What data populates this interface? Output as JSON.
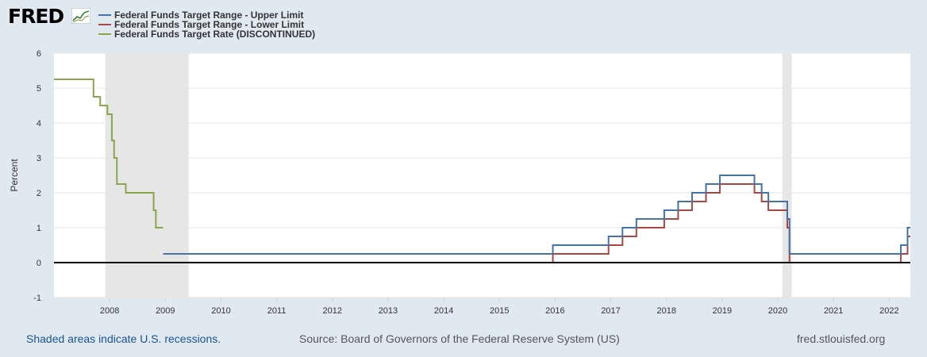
{
  "header": {
    "logo_text": "FRED",
    "logo_icon": "chart-line-icon"
  },
  "chart_data": {
    "type": "line",
    "title": "",
    "xlabel": "",
    "ylabel": "Percent",
    "ylim": [
      -1,
      6
    ],
    "xlim": [
      2007.0,
      2022.38
    ],
    "yticks": [
      "-1",
      "0",
      "1",
      "2",
      "3",
      "4",
      "5",
      "6"
    ],
    "xticks": [
      "2008",
      "2009",
      "2010",
      "2011",
      "2012",
      "2013",
      "2014",
      "2015",
      "2016",
      "2017",
      "2018",
      "2019",
      "2020",
      "2021",
      "2022"
    ],
    "grid": true,
    "legend_position": "top-left",
    "recessions": [
      [
        2007.92,
        2009.42
      ],
      [
        2020.08,
        2020.25
      ]
    ],
    "series": [
      {
        "name": "Federal Funds Target Range - Upper Limit",
        "color": "#4572a7",
        "step": true,
        "x": [
          2008.96,
          2015.96,
          2016.96,
          2017.21,
          2017.46,
          2017.96,
          2018.21,
          2018.46,
          2018.71,
          2018.96,
          2019.58,
          2019.71,
          2019.83,
          2020.17,
          2020.21,
          2020.25,
          2022.21,
          2022.33,
          2022.38
        ],
        "values": [
          0.25,
          0.5,
          0.75,
          1.0,
          1.25,
          1.5,
          1.75,
          2.0,
          2.25,
          2.5,
          2.25,
          2.0,
          1.75,
          1.25,
          0.25,
          0.25,
          0.5,
          1.0,
          1.0
        ]
      },
      {
        "name": "Federal Funds Target Range - Lower Limit",
        "color": "#aa4643",
        "step": true,
        "x": [
          2008.96,
          2015.96,
          2016.96,
          2017.21,
          2017.46,
          2017.96,
          2018.21,
          2018.46,
          2018.71,
          2018.96,
          2019.58,
          2019.71,
          2019.83,
          2020.17,
          2020.21,
          2020.25,
          2022.21,
          2022.33,
          2022.38
        ],
        "values": [
          0,
          0.25,
          0.5,
          0.75,
          1.0,
          1.25,
          1.5,
          1.75,
          2.0,
          2.25,
          2.0,
          1.75,
          1.5,
          1.0,
          0,
          0,
          0.25,
          0.75,
          0.75
        ]
      },
      {
        "name": "Federal Funds Target Rate (DISCONTINUED)",
        "color": "#89a54e",
        "step": true,
        "x": [
          2007.0,
          2007.71,
          2007.83,
          2007.96,
          2008.04,
          2008.08,
          2008.13,
          2008.29,
          2008.42,
          2008.79,
          2008.83,
          2008.96
        ],
        "values": [
          5.25,
          4.75,
          4.5,
          4.25,
          3.5,
          3.0,
          2.25,
          2.0,
          2.0,
          1.5,
          1.0,
          1.0
        ]
      }
    ]
  },
  "footer": {
    "note": "Shaded areas indicate U.S. recessions.",
    "source": "Source: Board of Governors of the Federal Reserve System (US)",
    "site": "fred.stlouisfed.org"
  }
}
